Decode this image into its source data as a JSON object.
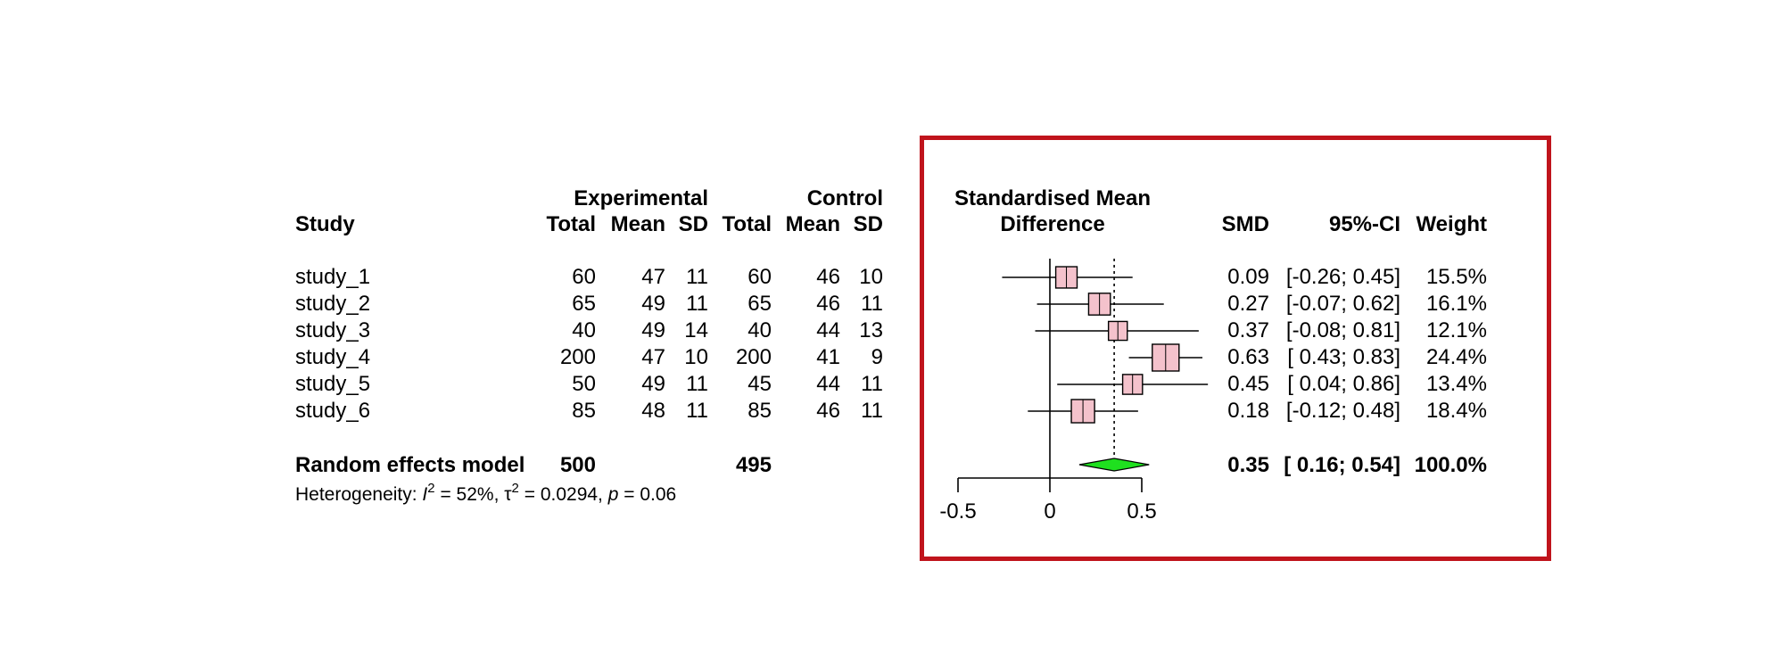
{
  "headers": {
    "study": "Study",
    "experimental": "Experimental",
    "control": "Control",
    "total": "Total",
    "mean": "Mean",
    "sd": "SD",
    "smd_title_1": "Standardised Mean",
    "smd_title_2": "Difference",
    "smd": "SMD",
    "ci": "95%-CI",
    "weight": "Weight"
  },
  "studies": [
    {
      "name": "study_1",
      "e_total": "60",
      "e_mean": "47",
      "e_sd": "11",
      "c_total": "60",
      "c_mean": "46",
      "c_sd": "10",
      "smd_text": "0.09",
      "ci_text": "[-0.26; 0.45]",
      "weight_text": "15.5%"
    },
    {
      "name": "study_2",
      "e_total": "65",
      "e_mean": "49",
      "e_sd": "11",
      "c_total": "65",
      "c_mean": "46",
      "c_sd": "11",
      "smd_text": "0.27",
      "ci_text": "[-0.07; 0.62]",
      "weight_text": "16.1%"
    },
    {
      "name": "study_3",
      "e_total": "40",
      "e_mean": "49",
      "e_sd": "14",
      "c_total": "40",
      "c_mean": "44",
      "c_sd": "13",
      "smd_text": "0.37",
      "ci_text": "[-0.08; 0.81]",
      "weight_text": "12.1%"
    },
    {
      "name": "study_4",
      "e_total": "200",
      "e_mean": "47",
      "e_sd": "10",
      "c_total": "200",
      "c_mean": "41",
      "c_sd": "9",
      "smd_text": "0.63",
      "ci_text": "[ 0.43; 0.83]",
      "weight_text": "24.4%"
    },
    {
      "name": "study_5",
      "e_total": "50",
      "e_mean": "49",
      "e_sd": "11",
      "c_total": "45",
      "c_mean": "44",
      "c_sd": "11",
      "smd_text": "0.45",
      "ci_text": "[ 0.04; 0.86]",
      "weight_text": "13.4%"
    },
    {
      "name": "study_6",
      "e_total": "85",
      "e_mean": "48",
      "e_sd": "11",
      "c_total": "85",
      "c_mean": "46",
      "c_sd": "11",
      "smd_text": "0.18",
      "ci_text": "[-0.12; 0.48]",
      "weight_text": "18.4%"
    }
  ],
  "pooled": {
    "label": "Random effects model",
    "e_total": "500",
    "c_total": "495",
    "smd_text": "0.35",
    "ci_text": "[ 0.16; 0.54]",
    "weight_text": "100.0%"
  },
  "heterogeneity": {
    "prefix": "Heterogeneity: ",
    "i2_symbol": "I",
    "i2_value": " = 52%, ",
    "tau_symbol": "τ",
    "tau_value": " = 0.0294, ",
    "p_symbol": "p",
    "p_value": " = 0.06"
  },
  "chart_data": {
    "type": "scatter",
    "subtype": "forest",
    "x_axis": {
      "ticks": [
        -0.5,
        0,
        0.5
      ],
      "tick_labels": [
        "-0.5",
        "0",
        "0.5"
      ],
      "range": [
        -0.5,
        0.5
      ]
    },
    "null_line": 0,
    "pooled_estimate_line": 0.35,
    "series": [
      {
        "points": [
          {
            "label": "study_1",
            "estimate": 0.09,
            "lower": -0.26,
            "upper": 0.45,
            "weight": 15.5
          },
          {
            "label": "study_2",
            "estimate": 0.27,
            "lower": -0.07,
            "upper": 0.62,
            "weight": 16.1
          },
          {
            "label": "study_3",
            "estimate": 0.37,
            "lower": -0.08,
            "upper": 0.81,
            "weight": 12.1
          },
          {
            "label": "study_4",
            "estimate": 0.63,
            "lower": 0.43,
            "upper": 0.83,
            "weight": 24.4
          },
          {
            "label": "study_5",
            "estimate": 0.45,
            "lower": 0.04,
            "upper": 0.86,
            "weight": 13.4
          },
          {
            "label": "study_6",
            "estimate": 0.18,
            "lower": -0.12,
            "upper": 0.48,
            "weight": 18.4
          }
        ]
      }
    ],
    "pooled": {
      "label": "Random effects model",
      "estimate": 0.35,
      "lower": 0.16,
      "upper": 0.54,
      "weight": 100.0
    },
    "colors": {
      "square_fill": "#f4c2cc",
      "diamond_fill": "#1fe01f",
      "highlight_box": "#c0141c"
    }
  }
}
